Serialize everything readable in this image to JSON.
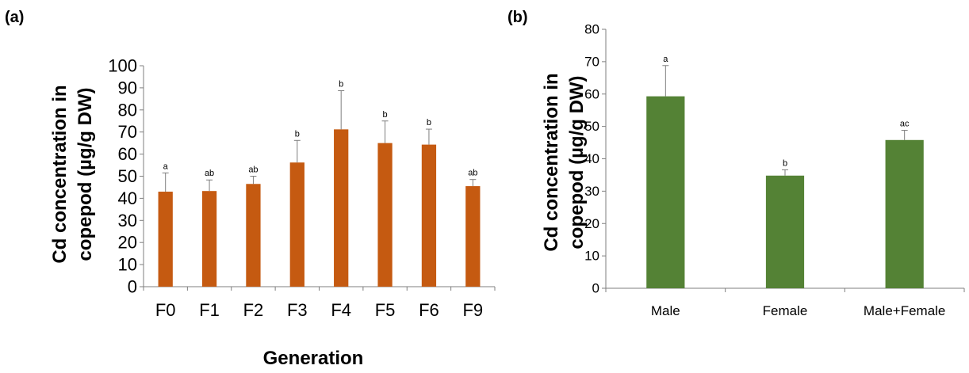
{
  "chart_data": [
    {
      "panel_label": "(a)",
      "type": "bar",
      "categories": [
        "F0",
        "F1",
        "F2",
        "F3",
        "F4",
        "F5",
        "F6",
        "F9"
      ],
      "values": [
        43,
        43.3,
        46.5,
        56.2,
        71.2,
        65,
        64.3,
        45.5
      ],
      "errors": [
        8.5,
        5,
        3.5,
        10,
        17.5,
        10,
        7,
        3
      ],
      "annotations": [
        "a",
        "ab",
        "ab",
        "b",
        "b",
        "b",
        "b",
        "ab"
      ],
      "ylabel_line1": "Cd concentration in",
      "ylabel_line2": "copepod (µg/g DW)",
      "xlabel": "Generation",
      "ylim": [
        0,
        100
      ],
      "yticks": [
        0,
        10,
        20,
        30,
        40,
        50,
        60,
        70,
        80,
        90,
        100
      ],
      "bar_color": "#C55A11"
    },
    {
      "panel_label": "(b)",
      "type": "bar",
      "categories": [
        "Male",
        "Female",
        "Male+Female"
      ],
      "values": [
        59.3,
        34.8,
        45.8
      ],
      "errors": [
        9.5,
        1.8,
        3
      ],
      "annotations": [
        "a",
        "b",
        "ac"
      ],
      "ylabel_line1": "Cd concentration in",
      "ylabel_line2": "copepod (µg/g DW)",
      "xlabel": "",
      "ylim": [
        0,
        80
      ],
      "yticks": [
        0,
        10,
        20,
        30,
        40,
        50,
        60,
        70,
        80
      ],
      "bar_color": "#548235"
    }
  ]
}
